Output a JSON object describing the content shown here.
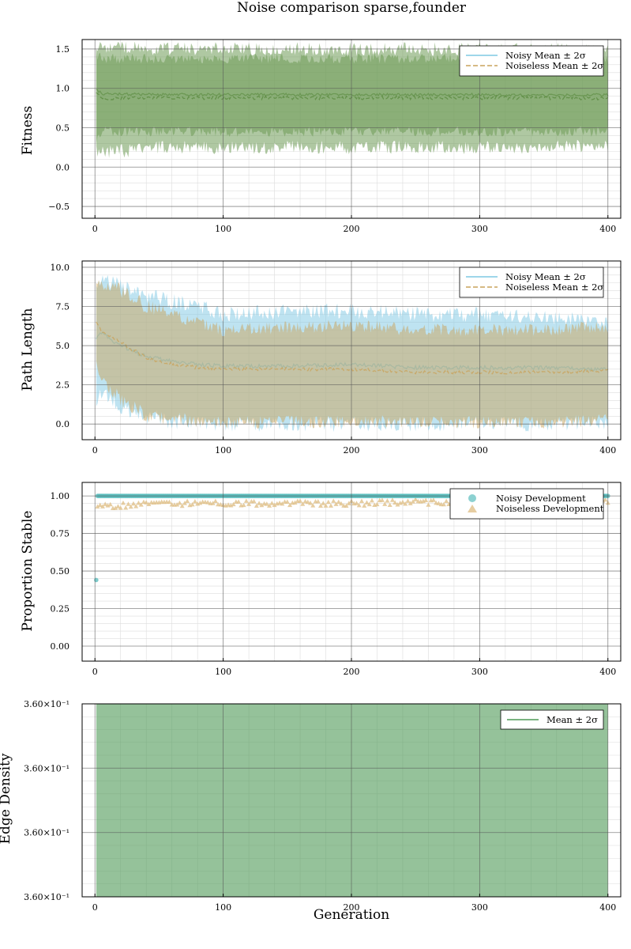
{
  "figure": {
    "title": "Noise comparison sparse,founder",
    "xlabel": "Generation"
  },
  "colors": {
    "noisy": "#7ec8e3",
    "noiseless": "#c9a35b",
    "noisy_dev": "#5bbdbd",
    "noiseless_dev": "#e0c08a",
    "fitness_fill": "#6e9a55",
    "edge": "#4e9a57",
    "grid_major": "#555555",
    "grid_minor": "#dddddd"
  },
  "chart_data": [
    {
      "id": "fitness",
      "type": "area",
      "ylabel": "Fitness",
      "xlim": [
        -10,
        410
      ],
      "ylim": [
        -0.65,
        1.62
      ],
      "xticks": [
        0,
        100,
        200,
        300,
        400
      ],
      "xtick_labels": [
        "0",
        "100",
        "200",
        "300",
        "400"
      ],
      "yticks": [
        1.5,
        1.0,
        0.5,
        0.0,
        -0.5
      ],
      "ytick_labels": [
        "1.5",
        "1.0",
        "0.5",
        "0.0",
        "−0.5"
      ],
      "grid": true,
      "legend_position": "top-right",
      "legend": [
        "Noisy Mean ± 2σ",
        "Noiseless Mean ± 2σ"
      ],
      "series": [
        {
          "name": "Noisy Mean ± 2σ",
          "style": "solid",
          "x": [
            1,
            5,
            50,
            100,
            150,
            200,
            250,
            300,
            350,
            400
          ],
          "mean": [
            1.0,
            0.93,
            0.92,
            0.92,
            0.92,
            0.92,
            0.92,
            0.92,
            0.91,
            0.92
          ],
          "lower": [
            0.3,
            0.45,
            0.45,
            0.45,
            0.45,
            0.45,
            0.45,
            0.45,
            0.45,
            0.45
          ],
          "upper": [
            1.45,
            1.38,
            1.38,
            1.38,
            1.38,
            1.38,
            1.38,
            1.38,
            1.38,
            1.38
          ]
        },
        {
          "name": "Noiseless Mean ± 2σ",
          "style": "dashed",
          "x": [
            1,
            5,
            50,
            100,
            150,
            200,
            250,
            300,
            350,
            400
          ],
          "mean": [
            0.95,
            0.87,
            0.88,
            0.88,
            0.88,
            0.88,
            0.88,
            0.88,
            0.88,
            0.87
          ],
          "lower": [
            0.2,
            0.18,
            0.25,
            0.25,
            0.25,
            0.25,
            0.25,
            0.25,
            0.25,
            0.28
          ],
          "upper": [
            1.5,
            1.52,
            1.5,
            1.5,
            1.5,
            1.5,
            1.5,
            1.5,
            1.5,
            1.47
          ]
        }
      ]
    },
    {
      "id": "path",
      "type": "area",
      "ylabel": "Path Length",
      "xlim": [
        -10,
        410
      ],
      "ylim": [
        -1.0,
        10.4
      ],
      "xticks": [
        0,
        100,
        200,
        300,
        400
      ],
      "xtick_labels": [
        "0",
        "100",
        "200",
        "300",
        "400"
      ],
      "yticks": [
        10.0,
        7.5,
        5.0,
        2.5,
        0.0
      ],
      "ytick_labels": [
        "10.0",
        "7.5",
        "5.0",
        "2.5",
        "0.0"
      ],
      "grid": true,
      "legend_position": "top-right",
      "legend": [
        "Noisy Mean ± 2σ",
        "Noiseless Mean ± 2σ"
      ],
      "series": [
        {
          "name": "Noisy Mean ± 2σ",
          "style": "solid",
          "x": [
            1,
            5,
            20,
            40,
            60,
            80,
            100,
            150,
            200,
            250,
            300,
            350,
            400
          ],
          "mean": [
            5.5,
            5.8,
            5.0,
            4.3,
            4.0,
            3.8,
            3.7,
            3.7,
            3.8,
            3.6,
            3.6,
            3.6,
            3.5
          ],
          "lower": [
            1.5,
            2.0,
            1.0,
            0.5,
            0.2,
            0.1,
            0.0,
            0.0,
            0.0,
            0.0,
            0.0,
            0.0,
            0.1
          ],
          "upper": [
            9.0,
            9.2,
            8.8,
            8.2,
            7.8,
            7.5,
            7.0,
            7.2,
            7.2,
            7.0,
            7.0,
            6.8,
            6.5
          ]
        },
        {
          "name": "Noiseless Mean ± 2σ",
          "style": "dashed",
          "x": [
            1,
            5,
            20,
            40,
            60,
            80,
            100,
            150,
            200,
            250,
            300,
            350,
            400
          ],
          "mean": [
            6.5,
            5.9,
            5.2,
            4.2,
            3.8,
            3.6,
            3.5,
            3.5,
            3.5,
            3.3,
            3.3,
            3.3,
            3.4
          ],
          "lower": [
            4.0,
            3.0,
            1.5,
            0.6,
            0.3,
            0.2,
            0.1,
            0.1,
            0.2,
            0.1,
            0.1,
            0.1,
            0.3
          ],
          "upper": [
            9.3,
            9.0,
            8.5,
            7.5,
            7.0,
            6.5,
            6.0,
            6.2,
            6.3,
            6.0,
            6.0,
            6.0,
            6.2
          ]
        }
      ]
    },
    {
      "id": "stable",
      "type": "scatter",
      "ylabel": "Proportion Stable",
      "xlim": [
        -10,
        410
      ],
      "ylim": [
        -0.1,
        1.09
      ],
      "xticks": [
        0,
        100,
        200,
        300,
        400
      ],
      "xtick_labels": [
        "0",
        "100",
        "200",
        "300",
        "400"
      ],
      "yticks": [
        1.0,
        0.75,
        0.5,
        0.25,
        0.0
      ],
      "ytick_labels": [
        "1.00",
        "0.75",
        "0.50",
        "0.25",
        "0.00"
      ],
      "grid": true,
      "legend_position": "top-right",
      "legend": [
        "Noisy Development",
        "Noiseless Development"
      ],
      "series": [
        {
          "name": "Noisy Development",
          "marker": "circle",
          "x": [
            1,
            2,
            5,
            100,
            200,
            300,
            400
          ],
          "y": [
            0.44,
            1.0,
            1.0,
            1.0,
            1.0,
            1.0,
            1.0
          ]
        },
        {
          "name": "Noiseless Development",
          "marker": "triangle",
          "x": [
            2,
            5,
            50,
            100,
            150,
            200,
            250,
            300,
            350,
            400
          ],
          "y": [
            0.94,
            0.93,
            0.95,
            0.95,
            0.95,
            0.95,
            0.96,
            0.95,
            0.95,
            0.96
          ]
        }
      ]
    },
    {
      "id": "edge",
      "type": "area",
      "ylabel": "Edge Density",
      "xlim": [
        -10,
        410
      ],
      "ylim": [
        0,
        1
      ],
      "xticks": [
        0,
        100,
        200,
        300,
        400
      ],
      "xtick_labels": [
        "0",
        "100",
        "200",
        "300",
        "400"
      ],
      "yticks": [
        0.0,
        0.333,
        0.667,
        1.0
      ],
      "ytick_labels": [
        "3.60×10⁻¹",
        "3.60×10⁻¹",
        "3.60×10⁻¹",
        "3.60×10⁻¹"
      ],
      "grid": true,
      "legend_position": "top-right",
      "legend": [
        "Mean ± 2σ"
      ],
      "series": [
        {
          "name": "Mean ± 2σ",
          "style": "solid",
          "x": [
            1,
            400
          ],
          "mean": [
            0.36,
            0.36
          ],
          "lower": [
            0.36,
            0.36
          ],
          "upper": [
            0.36,
            0.36
          ]
        }
      ]
    }
  ]
}
